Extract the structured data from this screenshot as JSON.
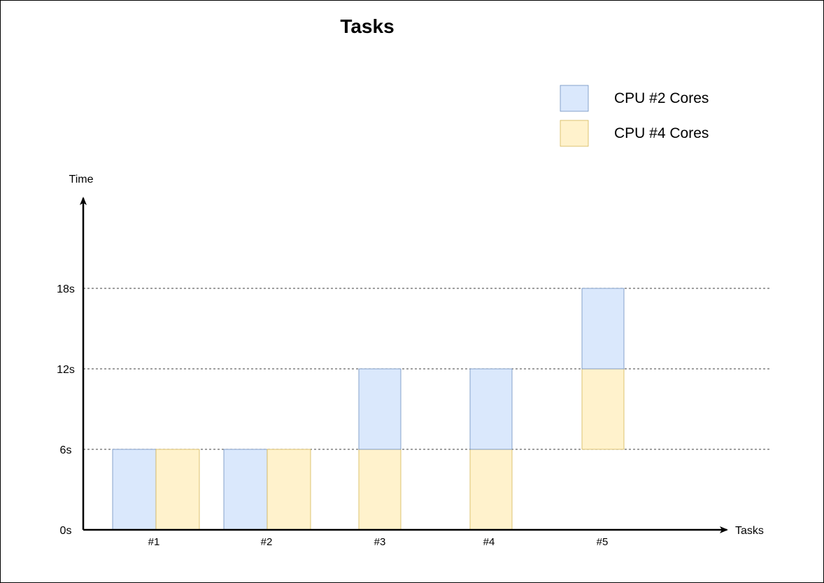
{
  "chart_data": {
    "type": "bar",
    "title": "Tasks",
    "xlabel": "Tasks",
    "ylabel": "Time",
    "y_ticks": [
      "0s",
      "6s",
      "12s",
      "18s"
    ],
    "y_tick_values": [
      0,
      6,
      12,
      18
    ],
    "ylim": [
      0,
      24
    ],
    "grid": "dashed lines at 6s, 12s, 18s",
    "legend_position": "top-right",
    "categories": [
      "#1",
      "#2",
      "#3",
      "#4",
      "#5"
    ],
    "series": [
      {
        "name": "CPU #2 Cores",
        "color": "#dae8fc",
        "stroke": "#6c8ebf"
      },
      {
        "name": "CPU #4 Cores",
        "color": "#fff2cc",
        "stroke": "#d6b656"
      }
    ],
    "bars": [
      {
        "task": "#1",
        "series": "CPU #2 Cores",
        "start": 0,
        "end": 6
      },
      {
        "task": "#1",
        "series": "CPU #4 Cores",
        "start": 0,
        "end": 6
      },
      {
        "task": "#2",
        "series": "CPU #2 Cores",
        "start": 0,
        "end": 6
      },
      {
        "task": "#2",
        "series": "CPU #4 Cores",
        "start": 0,
        "end": 6
      },
      {
        "task": "#3",
        "series": "CPU #4 Cores",
        "start": 0,
        "end": 6
      },
      {
        "task": "#3",
        "series": "CPU #2 Cores",
        "start": 6,
        "end": 12
      },
      {
        "task": "#4",
        "series": "CPU #4 Cores",
        "start": 0,
        "end": 6
      },
      {
        "task": "#4",
        "series": "CPU #2 Cores",
        "start": 6,
        "end": 12
      },
      {
        "task": "#5",
        "series": "CPU #4 Cores",
        "start": 6,
        "end": 12
      },
      {
        "task": "#5",
        "series": "CPU #2 Cores",
        "start": 12,
        "end": 18
      }
    ]
  }
}
